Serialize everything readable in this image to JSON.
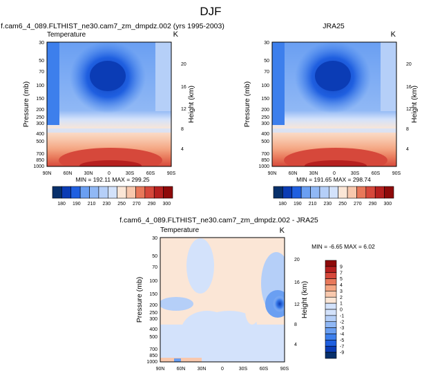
{
  "page": {
    "title": "DJF"
  },
  "palettes": {
    "temperature": [
      "#08306b",
      "#0b3cb5",
      "#1f5fe0",
      "#3d7fec",
      "#6a9ff2",
      "#90b8f5",
      "#b5cff8",
      "#d3e2fb",
      "#fbe6d6",
      "#f8c8ad",
      "#f4a582",
      "#e8785a",
      "#d6483b",
      "#b6201f",
      "#8e0a0a"
    ],
    "difference": [
      "#08306b",
      "#0b3cb5",
      "#1f5fe0",
      "#3d7fec",
      "#6a9ff2",
      "#90b8f5",
      "#b5cff8",
      "#d3e2fb",
      "#fbe6d6",
      "#f8c8ad",
      "#f4a582",
      "#e8785a",
      "#d6483b",
      "#b6201f",
      "#8e0a0a"
    ]
  },
  "chart_data": [
    {
      "type": "heatmap",
      "title": "f.cam6_4_089.FLTHIST_ne30.cam7_zm_dmpdz.002 (yrs 1995-2003)",
      "left_label": "Temperature",
      "right_label": "K",
      "xlabel": "",
      "ylabel": "Pressure (mb)",
      "ylabel_right": "Height (km)",
      "x_tick_labels": [
        "90N",
        "60N",
        "30N",
        "0",
        "30S",
        "60S",
        "90S"
      ],
      "y_tick_labels": [
        "30",
        "50",
        "70",
        "100",
        "150",
        "200",
        "250",
        "300",
        "400",
        "500",
        "700",
        "850",
        "1000"
      ],
      "y_right_tick_labels": [
        "20",
        "16",
        "12",
        "8",
        "4"
      ],
      "y_scale": "log",
      "x_range": [
        90,
        -90
      ],
      "y_range": [
        1000,
        30
      ],
      "stats": "MIN = 192.11   MAX = 299.25",
      "min": 192.11,
      "max": 299.25,
      "colorbar_labels": [
        "180",
        "190",
        "210",
        "230",
        "250",
        "270",
        "290",
        "300"
      ],
      "colorbar_bins": 13
    },
    {
      "type": "heatmap",
      "title": "JRA25",
      "left_label": "",
      "right_label": "K",
      "xlabel": "",
      "ylabel": "Pressure (mb)",
      "ylabel_right": "Height (km)",
      "x_tick_labels": [
        "90N",
        "60N",
        "30N",
        "0",
        "30S",
        "60S",
        "90S"
      ],
      "y_tick_labels": [
        "30",
        "50",
        "70",
        "100",
        "150",
        "200",
        "250",
        "300",
        "400",
        "500",
        "700",
        "850",
        "1000"
      ],
      "y_right_tick_labels": [
        "20",
        "16",
        "12",
        "8",
        "4"
      ],
      "y_scale": "log",
      "x_range": [
        90,
        -90
      ],
      "y_range": [
        1000,
        30
      ],
      "stats": "MIN = 191.65   MAX = 298.74",
      "min": 191.65,
      "max": 298.74,
      "colorbar_labels": [
        "180",
        "190",
        "210",
        "230",
        "250",
        "270",
        "290",
        "300"
      ],
      "colorbar_bins": 13
    },
    {
      "type": "heatmap",
      "title": "f.cam6_4_089.FLTHIST_ne30.cam7_zm_dmpdz.002 - JRA25",
      "left_label": "Temperature",
      "right_label": "K",
      "xlabel": "",
      "ylabel": "Pressure (mb)",
      "ylabel_right": "Height (km)",
      "x_tick_labels": [
        "90N",
        "60N",
        "30N",
        "0",
        "30S",
        "60S",
        "90S"
      ],
      "y_tick_labels": [
        "30",
        "50",
        "70",
        "100",
        "150",
        "200",
        "250",
        "300",
        "400",
        "500",
        "700",
        "850",
        "1000"
      ],
      "y_right_tick_labels": [
        "20",
        "16",
        "12",
        "8",
        "4"
      ],
      "y_scale": "log",
      "x_range": [
        90,
        -90
      ],
      "y_range": [
        1000,
        30
      ],
      "stats": "MIN =  -6.65   MAX =   6.02",
      "min": -6.65,
      "max": 6.02,
      "colorbar_labels": [
        "9",
        "7",
        "5",
        "4",
        "3",
        "2",
        "1",
        "0",
        "-1",
        "-2",
        "-3",
        "-4",
        "-5",
        "-7",
        "-9"
      ],
      "colorbar_bins": 16
    }
  ]
}
